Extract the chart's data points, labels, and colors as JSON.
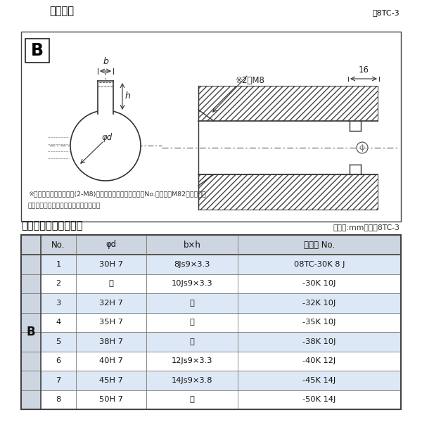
{
  "bg_color": "#ffffff",
  "title_diagram": "軸穴形状",
  "fig_label": "図8TC-3",
  "note_line1": "※セットボルト用タップ(2-M8)が必要な場合は右記コードNo.の末尾にM82を付ける。",
  "note_line2": "（セットボルトは付属されています。）",
  "table_title": "軸穴形状コード一覧表",
  "table_unit": "（単位:mm）　表8TC-3",
  "header": [
    "No.",
    "φd",
    "b×h",
    "コード No."
  ],
  "rows": [
    [
      "1",
      "30H 7",
      "8Js9×3.3",
      "08TC-30K 8 J"
    ],
    [
      "2",
      "〃",
      "10Js9×3.3",
      "-30K 10J"
    ],
    [
      "3",
      "32H 7",
      "〃",
      "-32K 10J"
    ],
    [
      "4",
      "35H 7",
      "〃",
      "-35K 10J"
    ],
    [
      "5",
      "38H 7",
      "〃",
      "-38K 10J"
    ],
    [
      "6",
      "40H 7",
      "12Js9×3.3",
      "-40K 12J"
    ],
    [
      "7",
      "45H 7",
      "14Js9×3.8",
      "-45K 14J"
    ],
    [
      "8",
      "50H 7",
      "〃",
      "-50K 14J"
    ]
  ],
  "row_color_even": "#dce8f5",
  "row_color_odd": "#ffffff",
  "border_color": "#444444",
  "header_bg": "#cdd5e0",
  "b_col_bg": "#cdd5e0",
  "text_color": "#111111",
  "dim_color": "#333333",
  "line_color": "#333333"
}
